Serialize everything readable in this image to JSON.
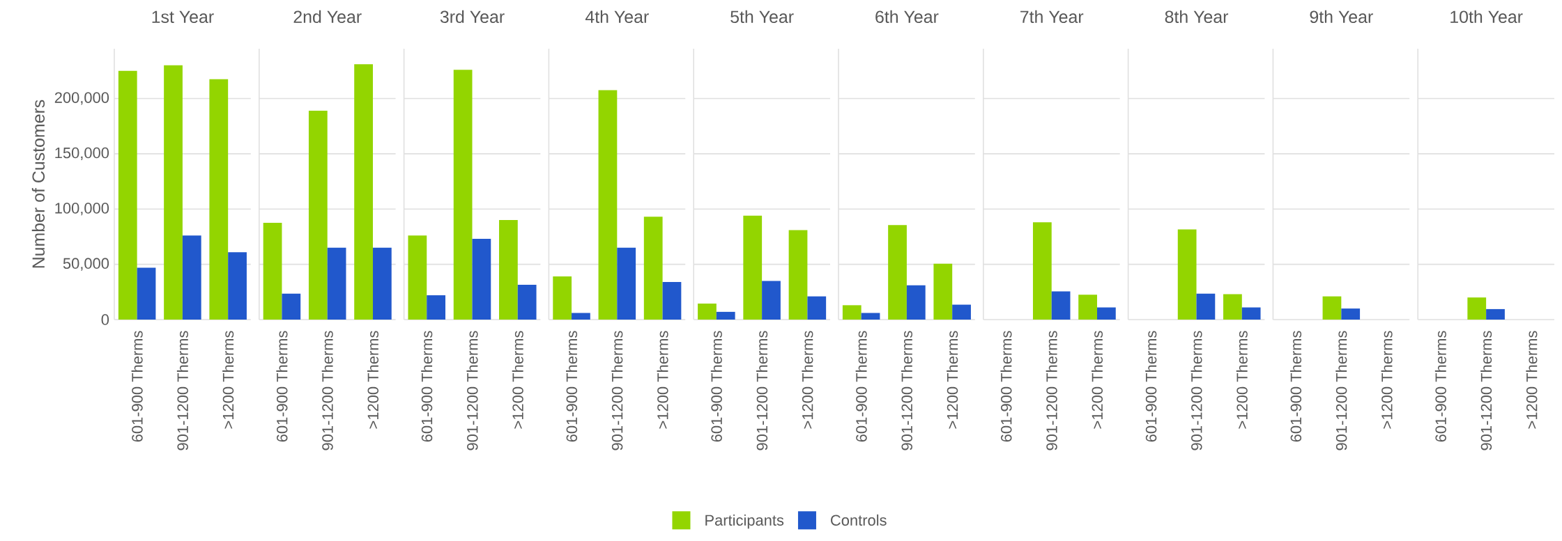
{
  "chart_data": [
    {
      "type": "bar",
      "title": "1st Year",
      "ylabel": "Number of Customers",
      "categories": [
        "601-900 Therms",
        "901-1200 Therms",
        ">1200 Therms"
      ],
      "series": [
        {
          "name": "Participants",
          "color": "#93d500",
          "values": [
            225000,
            230000,
            217500
          ]
        },
        {
          "name": "Controls",
          "color": "#2158cc",
          "values": [
            47000,
            76000,
            61000
          ]
        }
      ],
      "ylim": [
        0,
        245000
      ],
      "yticks": [
        0,
        {
          "value": 50000,
          "label": "50,000"
        },
        {
          "value": 100000,
          "label": "100,000"
        },
        {
          "value": 150000,
          "label": "150,000"
        },
        {
          "value": 200000,
          "label": "200,000"
        }
      ],
      "grid": "y",
      "legend": "bottom"
    },
    {
      "type": "bar",
      "title": "2nd Year",
      "categories": [
        "601-900 Therms",
        "901-1200 Therms",
        ">1200 Therms"
      ],
      "series": [
        {
          "color": "#93d500",
          "values": [
            87500,
            189000,
            231000
          ]
        },
        {
          "color": "#2158cc",
          "values": [
            23500,
            65000,
            65000
          ]
        }
      ],
      "ylim": [
        0,
        245000
      ],
      "yticks": [
        0,
        50000,
        100000,
        150000,
        200000
      ],
      "grid": "y",
      "tick_labels": "x"
    },
    {
      "type": "bar",
      "title": "3rd Year",
      "categories": [
        "601-900 Therms",
        "901-1200 Therms",
        ">1200 Therms"
      ],
      "series": [
        {
          "color": "#93d500",
          "values": [
            76000,
            226000,
            90000
          ]
        },
        {
          "color": "#2158cc",
          "values": [
            22000,
            73000,
            31500
          ]
        }
      ],
      "ylim": [
        0,
        245000
      ],
      "yticks": [
        0,
        50000,
        100000,
        150000,
        200000
      ],
      "grid": "y",
      "tick_labels": "x"
    },
    {
      "type": "bar",
      "title": "4th Year",
      "categories": [
        "601-900 Therms",
        "901-1200 Therms",
        ">1200 Therms"
      ],
      "series": [
        {
          "color": "#93d500",
          "values": [
            39000,
            207500,
            93000
          ]
        },
        {
          "color": "#2158cc",
          "values": [
            6000,
            65000,
            34000
          ]
        }
      ],
      "ylim": [
        0,
        245000
      ],
      "yticks": [
        0,
        50000,
        100000,
        150000,
        200000
      ],
      "grid": "y",
      "tick_labels": "x"
    },
    {
      "type": "bar",
      "title": "5th Year",
      "categories": [
        "601-900 Therms",
        "901-1200 Therms",
        ">1200 Therms"
      ],
      "series": [
        {
          "color": "#93d500",
          "values": [
            14500,
            94000,
            81000
          ]
        },
        {
          "color": "#2158cc",
          "values": [
            7000,
            35000,
            21000
          ]
        }
      ],
      "ylim": [
        0,
        245000
      ],
      "yticks": [
        0,
        50000,
        100000,
        150000,
        200000
      ],
      "grid": "y",
      "tick_labels": "x"
    },
    {
      "type": "bar",
      "title": "6th Year",
      "categories": [
        "601-900 Therms",
        "901-1200 Therms",
        ">1200 Therms"
      ],
      "series": [
        {
          "color": "#93d500",
          "values": [
            13000,
            85500,
            50500
          ]
        },
        {
          "color": "#2158cc",
          "values": [
            6000,
            31000,
            13500
          ]
        }
      ],
      "ylim": [
        0,
        245000
      ],
      "yticks": [
        0,
        50000,
        100000,
        150000,
        200000
      ],
      "grid": "y",
      "tick_labels": "x"
    },
    {
      "type": "bar",
      "title": "7th Year",
      "categories": [
        "601-900 Therms",
        "901-1200 Therms",
        ">1200 Therms"
      ],
      "series": [
        {
          "color": "#93d500",
          "values": [
            null,
            88000,
            22500
          ]
        },
        {
          "color": "#2158cc",
          "values": [
            null,
            25500,
            11000
          ]
        }
      ],
      "ylim": [
        0,
        245000
      ],
      "yticks": [
        0,
        50000,
        100000,
        150000,
        200000
      ],
      "grid": "y",
      "tick_labels": "x"
    },
    {
      "type": "bar",
      "title": "8th Year",
      "categories": [
        "601-900 Therms",
        "901-1200 Therms",
        ">1200 Therms"
      ],
      "series": [
        {
          "color": "#93d500",
          "values": [
            null,
            81500,
            23000
          ]
        },
        {
          "color": "#2158cc",
          "values": [
            null,
            23500,
            11000
          ]
        }
      ],
      "ylim": [
        0,
        245000
      ],
      "yticks": [
        0,
        50000,
        100000,
        150000,
        200000
      ],
      "grid": "y",
      "tick_labels": "x"
    },
    {
      "type": "bar",
      "title": "9th Year",
      "categories": [
        "601-900 Therms",
        "901-1200 Therms",
        ">1200 Therms"
      ],
      "series": [
        {
          "color": "#93d500",
          "values": [
            null,
            21000,
            null
          ]
        },
        {
          "color": "#2158cc",
          "values": [
            null,
            10000,
            null
          ]
        }
      ],
      "ylim": [
        0,
        245000
      ],
      "yticks": [
        0,
        50000,
        100000,
        150000,
        200000
      ],
      "grid": "y",
      "tick_labels": "x"
    },
    {
      "type": "bar",
      "title": "10th Year",
      "categories": [
        "601-900 Therms",
        "901-1200 Therms",
        ">1200 Therms"
      ],
      "series": [
        {
          "color": "#93d500",
          "values": [
            null,
            20000,
            null
          ]
        },
        {
          "color": "#2158cc",
          "values": [
            null,
            9500,
            null
          ]
        }
      ],
      "ylim": [
        0,
        245000
      ],
      "yticks": [
        0,
        50000,
        100000,
        150000,
        200000
      ],
      "grid": "y",
      "tick_labels": "x"
    }
  ]
}
